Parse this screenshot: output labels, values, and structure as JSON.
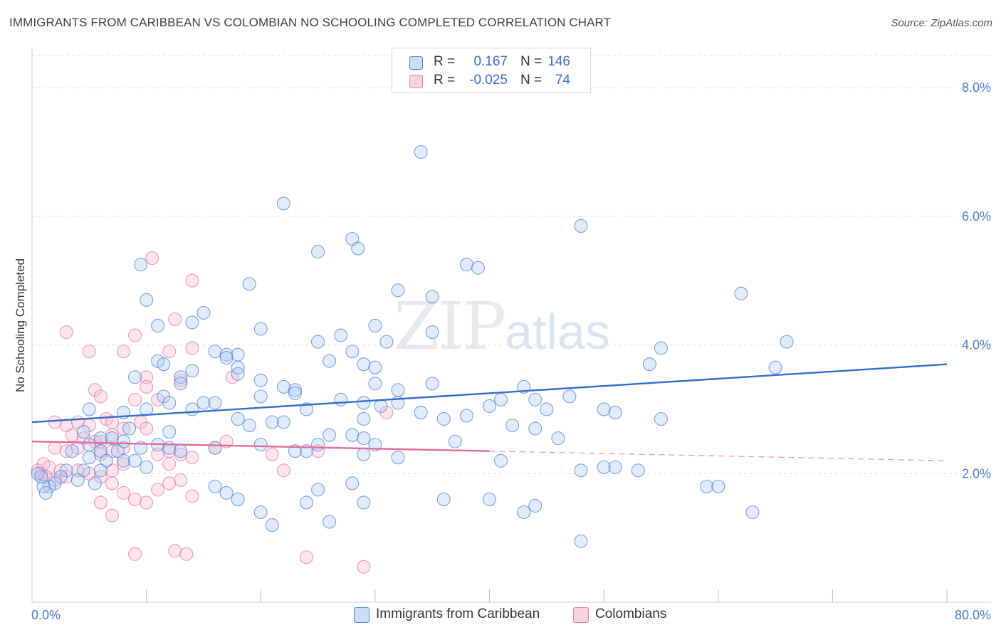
{
  "title": "IMMIGRANTS FROM CARIBBEAN VS COLOMBIAN NO SCHOOLING COMPLETED CORRELATION CHART",
  "source": "Source: ZipAtlas.com",
  "watermark": {
    "zip": "ZIP",
    "atlas": "atlas"
  },
  "legend": {
    "r_label": "R =",
    "n_label": "N =",
    "series": [
      {
        "r": "0.167",
        "n": "146"
      },
      {
        "r": "-0.025",
        "n": "74"
      }
    ]
  },
  "bottom_legend": [
    "Immigrants from Caribbean",
    "Colombians"
  ],
  "colors": {
    "blue": "#4a86d8",
    "blue_fill": "rgba(170,200,240,0.35)",
    "pink": "#e87aa0",
    "pink_fill": "rgba(245,180,205,0.35)",
    "blue_line": "#2f6fd0",
    "pink_line": "#e8699a"
  },
  "chart_data": {
    "type": "scatter",
    "xlabel": "",
    "ylabel": "No Schooling Completed",
    "xlim": [
      0,
      80
    ],
    "ylim": [
      0,
      8.5
    ],
    "x_ticks_labeled": [
      "0.0%",
      "80.0%"
    ],
    "y_ticks": [
      2.0,
      4.0,
      6.0,
      8.0
    ],
    "y_tick_labels": [
      "2.0%",
      "4.0%",
      "6.0%",
      "8.0%"
    ],
    "grid": "horizontal dashed",
    "legend_position": "top-center",
    "series": [
      {
        "name": "Immigrants from Caribbean",
        "trend": {
          "x0": 0,
          "y0": 2.8,
          "x1": 80,
          "y1": 3.7
        },
        "points": [
          [
            34,
            7.0
          ],
          [
            22,
            6.2
          ],
          [
            48,
            5.85
          ],
          [
            28,
            5.65
          ],
          [
            28.5,
            5.5
          ],
          [
            25,
            5.45
          ],
          [
            38,
            5.25
          ],
          [
            39,
            5.2
          ],
          [
            9.5,
            5.25
          ],
          [
            19,
            4.95
          ],
          [
            32,
            4.85
          ],
          [
            35,
            4.75
          ],
          [
            62,
            4.8
          ],
          [
            10,
            4.7
          ],
          [
            15,
            4.5
          ],
          [
            14,
            4.35
          ],
          [
            11,
            4.3
          ],
          [
            20,
            4.25
          ],
          [
            30,
            4.3
          ],
          [
            27,
            4.15
          ],
          [
            25,
            4.05
          ],
          [
            35,
            4.2
          ],
          [
            66,
            4.05
          ],
          [
            31,
            4.05
          ],
          [
            55,
            3.95
          ],
          [
            28,
            3.9
          ],
          [
            16,
            3.9
          ],
          [
            17,
            3.85
          ],
          [
            18,
            3.85
          ],
          [
            11,
            3.75
          ],
          [
            11.5,
            3.7
          ],
          [
            17,
            3.8
          ],
          [
            26,
            3.75
          ],
          [
            54,
            3.7
          ],
          [
            29,
            3.7
          ],
          [
            18,
            3.65
          ],
          [
            30,
            3.65
          ],
          [
            65,
            3.65
          ],
          [
            14,
            3.6
          ],
          [
            13,
            3.5
          ],
          [
            9,
            3.5
          ],
          [
            18,
            3.55
          ],
          [
            30,
            3.4
          ],
          [
            20,
            3.45
          ],
          [
            22,
            3.35
          ],
          [
            43,
            3.35
          ],
          [
            35,
            3.4
          ],
          [
            13,
            3.4
          ],
          [
            47,
            3.2
          ],
          [
            32,
            3.3
          ],
          [
            23,
            3.3
          ],
          [
            11.5,
            3.2
          ],
          [
            23,
            3.25
          ],
          [
            12,
            3.1
          ],
          [
            15,
            3.1
          ],
          [
            16,
            3.1
          ],
          [
            20,
            3.2
          ],
          [
            27,
            3.15
          ],
          [
            29,
            3.1
          ],
          [
            41,
            3.15
          ],
          [
            44,
            3.15
          ],
          [
            30.5,
            3.05
          ],
          [
            32,
            3.1
          ],
          [
            40,
            3.05
          ],
          [
            45,
            3.0
          ],
          [
            50,
            3.0
          ],
          [
            51,
            2.95
          ],
          [
            24,
            3.0
          ],
          [
            10,
            3.0
          ],
          [
            8,
            2.95
          ],
          [
            5,
            3.0
          ],
          [
            14,
            3.0
          ],
          [
            34,
            2.95
          ],
          [
            55,
            2.85
          ],
          [
            38,
            2.9
          ],
          [
            36,
            2.85
          ],
          [
            29,
            2.85
          ],
          [
            18,
            2.85
          ],
          [
            21,
            2.8
          ],
          [
            22,
            2.8
          ],
          [
            19,
            2.75
          ],
          [
            42,
            2.75
          ],
          [
            44,
            2.7
          ],
          [
            8.5,
            2.7
          ],
          [
            4.5,
            2.65
          ],
          [
            12,
            2.65
          ],
          [
            26,
            2.6
          ],
          [
            28,
            2.6
          ],
          [
            29,
            2.55
          ],
          [
            37,
            2.5
          ],
          [
            46,
            2.55
          ],
          [
            30,
            2.45
          ],
          [
            25,
            2.45
          ],
          [
            20,
            2.45
          ],
          [
            6,
            2.55
          ],
          [
            7,
            2.55
          ],
          [
            8,
            2.5
          ],
          [
            5,
            2.45
          ],
          [
            3.5,
            2.35
          ],
          [
            6,
            2.35
          ],
          [
            7.5,
            2.35
          ],
          [
            9.5,
            2.4
          ],
          [
            11,
            2.45
          ],
          [
            12,
            2.4
          ],
          [
            13,
            2.35
          ],
          [
            16,
            2.4
          ],
          [
            23,
            2.35
          ],
          [
            24,
            2.35
          ],
          [
            29,
            2.3
          ],
          [
            32,
            2.25
          ],
          [
            41,
            2.2
          ],
          [
            48,
            2.05
          ],
          [
            50,
            2.1
          ],
          [
            51,
            2.1
          ],
          [
            53,
            2.05
          ],
          [
            5,
            2.25
          ],
          [
            6.5,
            2.2
          ],
          [
            8,
            2.2
          ],
          [
            9,
            2.2
          ],
          [
            10,
            2.1
          ],
          [
            3,
            2.05
          ],
          [
            4.5,
            2.05
          ],
          [
            6,
            2.05
          ],
          [
            2.5,
            1.95
          ],
          [
            4,
            1.9
          ],
          [
            5.5,
            1.85
          ],
          [
            2,
            1.85
          ],
          [
            1.5,
            1.8
          ],
          [
            1,
            1.8
          ],
          [
            1.2,
            1.7
          ],
          [
            16,
            1.8
          ],
          [
            17,
            1.7
          ],
          [
            18,
            1.6
          ],
          [
            25,
            1.75
          ],
          [
            28,
            1.85
          ],
          [
            24,
            1.55
          ],
          [
            20,
            1.4
          ],
          [
            43,
            1.4
          ],
          [
            44,
            1.5
          ],
          [
            63,
            1.4
          ],
          [
            59,
            1.8
          ],
          [
            60,
            1.8
          ],
          [
            36,
            1.6
          ],
          [
            40,
            1.6
          ],
          [
            48,
            0.95
          ],
          [
            29,
            1.55
          ],
          [
            26,
            1.25
          ],
          [
            21,
            1.2
          ],
          [
            0.8,
            1.95
          ],
          [
            0.5,
            2.0
          ]
        ]
      },
      {
        "name": "Colombians",
        "trend": {
          "x0": 0,
          "y0": 2.5,
          "x1": 40,
          "y1": 2.35,
          "dash_to_x": 80,
          "dash_to_y": 2.2
        },
        "points": [
          [
            10.5,
            5.35
          ],
          [
            14,
            5.0
          ],
          [
            12.5,
            4.4
          ],
          [
            3,
            4.2
          ],
          [
            9,
            4.15
          ],
          [
            5,
            3.9
          ],
          [
            8,
            3.9
          ],
          [
            12,
            3.9
          ],
          [
            14,
            3.95
          ],
          [
            10,
            3.5
          ],
          [
            5.5,
            3.3
          ],
          [
            10,
            3.35
          ],
          [
            13,
            3.45
          ],
          [
            17.5,
            3.5
          ],
          [
            6,
            3.2
          ],
          [
            9,
            3.15
          ],
          [
            11,
            3.15
          ],
          [
            2,
            2.8
          ],
          [
            3,
            2.75
          ],
          [
            4,
            2.8
          ],
          [
            5,
            2.75
          ],
          [
            6.5,
            2.85
          ],
          [
            7,
            2.8
          ],
          [
            8,
            2.7
          ],
          [
            9.5,
            2.8
          ],
          [
            10,
            2.7
          ],
          [
            3.5,
            2.6
          ],
          [
            4.5,
            2.55
          ],
          [
            5.5,
            2.5
          ],
          [
            6,
            2.5
          ],
          [
            7,
            2.6
          ],
          [
            2,
            2.4
          ],
          [
            3,
            2.35
          ],
          [
            4,
            2.4
          ],
          [
            6,
            2.3
          ],
          [
            7,
            2.35
          ],
          [
            8,
            2.4
          ],
          [
            12,
            2.35
          ],
          [
            13,
            2.3
          ],
          [
            14,
            2.25
          ],
          [
            11,
            2.3
          ],
          [
            12,
            2.15
          ],
          [
            16,
            2.4
          ],
          [
            17,
            2.5
          ],
          [
            21,
            2.3
          ],
          [
            25,
            2.35
          ],
          [
            31,
            2.95
          ],
          [
            1,
            2.15
          ],
          [
            1.5,
            2.1
          ],
          [
            2.5,
            2.05
          ],
          [
            4,
            2.05
          ],
          [
            5,
            2.0
          ],
          [
            6,
            1.95
          ],
          [
            7,
            2.05
          ],
          [
            8,
            2.15
          ],
          [
            0.5,
            2.05
          ],
          [
            0.8,
            2.0
          ],
          [
            1.2,
            1.95
          ],
          [
            2,
            1.9
          ],
          [
            3,
            1.95
          ],
          [
            7,
            1.85
          ],
          [
            12,
            1.85
          ],
          [
            13,
            1.9
          ],
          [
            8,
            1.7
          ],
          [
            9,
            1.6
          ],
          [
            10,
            1.55
          ],
          [
            11,
            1.75
          ],
          [
            14,
            1.65
          ],
          [
            6,
            1.55
          ],
          [
            7,
            1.35
          ],
          [
            22,
            2.05
          ],
          [
            12.5,
            0.8
          ],
          [
            13.5,
            0.75
          ],
          [
            9,
            0.75
          ],
          [
            24,
            0.7
          ],
          [
            29,
            0.55
          ]
        ]
      }
    ]
  }
}
